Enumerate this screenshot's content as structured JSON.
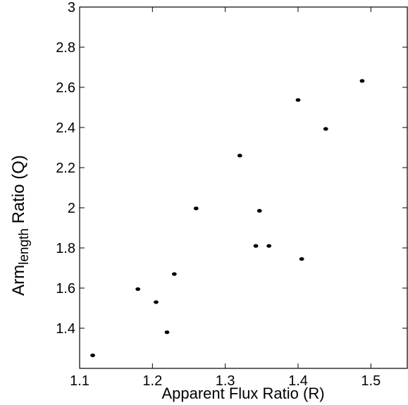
{
  "chart_data": {
    "type": "scatter",
    "title": "",
    "xlabel": "Apparent Flux Ratio (R)",
    "ylabel_main": "Arm",
    "ylabel_sub": "length",
    "ylabel_rest": " Ratio (Q)",
    "xlim": [
      1.1,
      1.55
    ],
    "ylim": [
      1.2,
      3.0
    ],
    "xticks": [
      1.1,
      1.2,
      1.3,
      1.4,
      1.5
    ],
    "xtick_labels": [
      "1.1",
      "1.2",
      "1.3",
      "1.4",
      "1.5"
    ],
    "yticks": [
      1.4,
      1.6,
      1.8,
      2.0,
      2.2,
      2.4,
      2.6,
      2.8,
      3.0
    ],
    "ytick_labels": [
      "1.4",
      "1.6",
      "1.8",
      "2",
      "2.2",
      "2.4",
      "2.6",
      "2.8",
      "3"
    ],
    "grid": false,
    "marker_color": "#000000",
    "points": [
      {
        "x": 1.118,
        "y": 1.265
      },
      {
        "x": 1.18,
        "y": 1.595
      },
      {
        "x": 1.205,
        "y": 1.53
      },
      {
        "x": 1.22,
        "y": 1.38
      },
      {
        "x": 1.23,
        "y": 1.67
      },
      {
        "x": 1.26,
        "y": 1.997
      },
      {
        "x": 1.32,
        "y": 2.26
      },
      {
        "x": 1.342,
        "y": 1.81
      },
      {
        "x": 1.347,
        "y": 1.985
      },
      {
        "x": 1.36,
        "y": 1.81
      },
      {
        "x": 1.4,
        "y": 2.537
      },
      {
        "x": 1.405,
        "y": 1.745
      },
      {
        "x": 1.438,
        "y": 2.393
      },
      {
        "x": 1.488,
        "y": 2.632
      }
    ]
  }
}
